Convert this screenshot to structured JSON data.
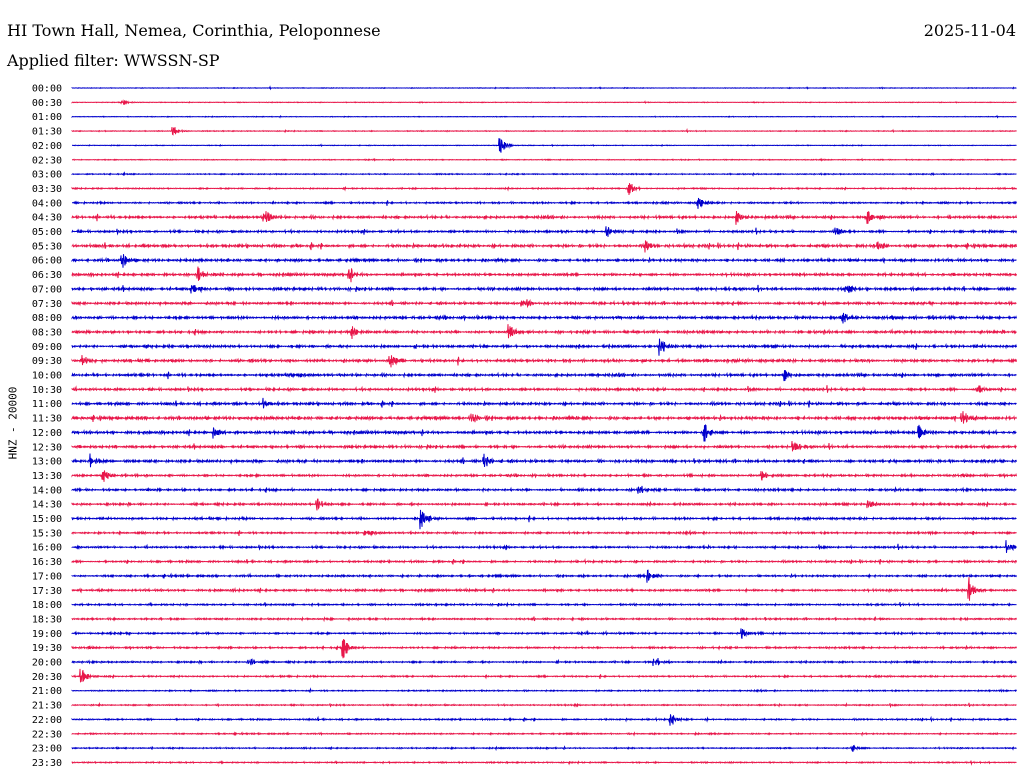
{
  "header": {
    "station": "HI Town Hall, Nemea, Corinthia, Peloponnese",
    "date": "2025-11-04",
    "filter": "Applied filter: WWSSN-SP"
  },
  "chart_data": {
    "type": "line",
    "title": "HI Town Hall, Nemea, Corinthia, Peloponnese",
    "ylabel": "HNZ - 20000",
    "x_range_minutes": [
      0,
      30
    ],
    "colors": {
      "odd": "#0000cc",
      "even": "#e8174a"
    },
    "rows": [
      "00:00",
      "00:30",
      "01:00",
      "01:30",
      "02:00",
      "02:30",
      "03:00",
      "03:30",
      "04:00",
      "04:30",
      "05:00",
      "05:30",
      "06:00",
      "06:30",
      "07:00",
      "07:30",
      "08:00",
      "08:30",
      "09:00",
      "09:30",
      "10:00",
      "10:30",
      "11:00",
      "11:30",
      "12:00",
      "12:30",
      "13:00",
      "13:30",
      "14:00",
      "14:30",
      "15:00",
      "15:30",
      "16:00",
      "16:30",
      "17:00",
      "17:30",
      "18:00",
      "18:30",
      "19:00",
      "19:30",
      "20:00",
      "20:30",
      "21:00",
      "21:30",
      "22:00",
      "22:30",
      "23:00",
      "23:30"
    ],
    "noise_level": [
      0.3,
      0.3,
      0.3,
      0.4,
      0.3,
      0.4,
      0.5,
      0.6,
      0.8,
      1.2,
      1.0,
      1.3,
      1.2,
      1.2,
      1.3,
      1.1,
      1.3,
      1.2,
      1.2,
      1.3,
      1.2,
      1.1,
      1.2,
      1.4,
      1.3,
      1.2,
      1.2,
      1.0,
      1.0,
      1.0,
      1.0,
      0.9,
      0.9,
      0.9,
      0.9,
      1.0,
      0.8,
      0.8,
      0.8,
      0.8,
      0.8,
      0.7,
      0.6,
      0.6,
      0.7,
      0.6,
      0.6,
      0.6
    ],
    "events": [
      {
        "row": 1,
        "minute": 1.6,
        "amp": 3
      },
      {
        "row": 3,
        "minute": 3.2,
        "amp": 7
      },
      {
        "row": 4,
        "minute": 13.6,
        "amp": 10
      },
      {
        "row": 7,
        "minute": 17.7,
        "amp": 8
      },
      {
        "row": 8,
        "minute": 19.9,
        "amp": 8
      },
      {
        "row": 9,
        "minute": 6.1,
        "amp": 10
      },
      {
        "row": 9,
        "minute": 21.1,
        "amp": 9
      },
      {
        "row": 9,
        "minute": 25.3,
        "amp": 10
      },
      {
        "row": 10,
        "minute": 17.0,
        "amp": 8
      },
      {
        "row": 10,
        "minute": 24.2,
        "amp": 9
      },
      {
        "row": 11,
        "minute": 18.2,
        "amp": 7
      },
      {
        "row": 11,
        "minute": 25.6,
        "amp": 7
      },
      {
        "row": 12,
        "minute": 1.6,
        "amp": 8
      },
      {
        "row": 13,
        "minute": 4.0,
        "amp": 8
      },
      {
        "row": 13,
        "minute": 8.8,
        "amp": 7
      },
      {
        "row": 14,
        "minute": 3.8,
        "amp": 7
      },
      {
        "row": 14,
        "minute": 24.6,
        "amp": 7
      },
      {
        "row": 15,
        "minute": 14.3,
        "amp": 8
      },
      {
        "row": 16,
        "minute": 24.5,
        "amp": 8
      },
      {
        "row": 17,
        "minute": 8.9,
        "amp": 7
      },
      {
        "row": 17,
        "minute": 13.9,
        "amp": 7
      },
      {
        "row": 18,
        "minute": 18.7,
        "amp": 8
      },
      {
        "row": 19,
        "minute": 0.3,
        "amp": 6
      },
      {
        "row": 19,
        "minute": 10.1,
        "amp": 8
      },
      {
        "row": 20,
        "minute": 6.9,
        "amp": 8
      },
      {
        "row": 20,
        "minute": 22.6,
        "amp": 9
      },
      {
        "row": 21,
        "minute": 28.7,
        "amp": 9
      },
      {
        "row": 22,
        "minute": 6.1,
        "amp": 7
      },
      {
        "row": 23,
        "minute": 12.7,
        "amp": 8
      },
      {
        "row": 23,
        "minute": 28.3,
        "amp": 8
      },
      {
        "row": 24,
        "minute": 4.5,
        "amp": 8
      },
      {
        "row": 24,
        "minute": 20.1,
        "amp": 9
      },
      {
        "row": 24,
        "minute": 26.9,
        "amp": 8
      },
      {
        "row": 25,
        "minute": 22.9,
        "amp": 8
      },
      {
        "row": 26,
        "minute": 0.6,
        "amp": 8
      },
      {
        "row": 26,
        "minute": 13.1,
        "amp": 8
      },
      {
        "row": 27,
        "minute": 1.0,
        "amp": 7
      },
      {
        "row": 27,
        "minute": 21.9,
        "amp": 7
      },
      {
        "row": 28,
        "minute": 18.0,
        "amp": 6
      },
      {
        "row": 29,
        "minute": 7.8,
        "amp": 8
      },
      {
        "row": 29,
        "minute": 25.3,
        "amp": 7
      },
      {
        "row": 30,
        "minute": 11.1,
        "amp": 11
      },
      {
        "row": 31,
        "minute": 9.3,
        "amp": 6
      },
      {
        "row": 32,
        "minute": 29.7,
        "amp": 9
      },
      {
        "row": 34,
        "minute": 18.3,
        "amp": 6
      },
      {
        "row": 35,
        "minute": 28.5,
        "amp": 13
      },
      {
        "row": 38,
        "minute": 21.3,
        "amp": 7
      },
      {
        "row": 39,
        "minute": 8.6,
        "amp": 13
      },
      {
        "row": 40,
        "minute": 5.6,
        "amp": 8
      },
      {
        "row": 40,
        "minute": 18.5,
        "amp": 9
      },
      {
        "row": 41,
        "minute": 0.3,
        "amp": 9
      },
      {
        "row": 44,
        "minute": 19.0,
        "amp": 9
      },
      {
        "row": 46,
        "minute": 24.8,
        "amp": 4
      }
    ]
  }
}
